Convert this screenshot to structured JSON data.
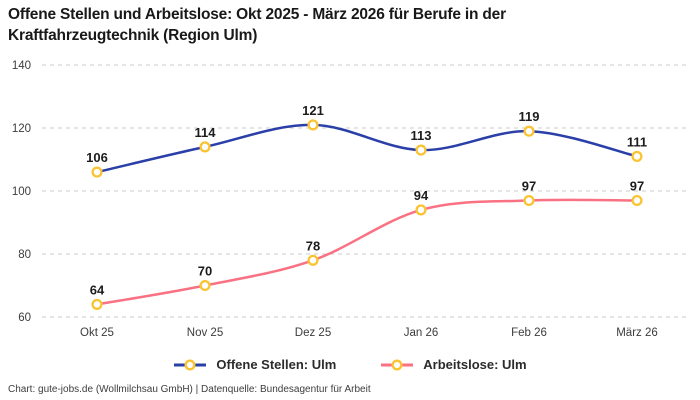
{
  "header": {
    "title": "Offene Stellen und Arbeitslose: Okt 2025 - März 2026 für Berufe in der Kraftfahrzeugtechnik (Region Ulm)"
  },
  "legend": {
    "items": [
      {
        "label": "Offene Stellen: Ulm",
        "color": "#2a3fa8"
      },
      {
        "label": "Arbeitslose: Ulm",
        "color": "#fa7183"
      }
    ]
  },
  "footer": {
    "text": "Chart: gute-jobs.de (Wollmilchsau GmbH) | Datenquelle: Bundesagentur für Arbeit"
  },
  "chart_data": {
    "type": "line",
    "title": "Offene Stellen und Arbeitslose: Okt 2025 - März 2026 für Berufe in der Kraftfahrzeugtechnik (Region Ulm)",
    "categories": [
      "Okt 25",
      "Nov 25",
      "Dez 25",
      "Jan 26",
      "Feb 26",
      "März 26"
    ],
    "series": [
      {
        "name": "Offene Stellen: Ulm",
        "color": "#2a3fa8",
        "values": [
          106,
          114,
          121,
          113,
          119,
          111
        ]
      },
      {
        "name": "Arbeitslose: Ulm",
        "color": "#fa7183",
        "values": [
          64,
          70,
          78,
          94,
          97,
          97
        ]
      }
    ],
    "xlabel": "",
    "ylabel": "",
    "ylim": [
      60,
      140
    ],
    "yticks": [
      140,
      120,
      100,
      80,
      60
    ],
    "grid": "dashed-horizontal",
    "gridline_color": "#cbcbcb",
    "legend_position": "bottom",
    "data_labels": true,
    "marker": {
      "shape": "circle",
      "fill": "#ffffff",
      "stroke": "#f9c332"
    }
  }
}
